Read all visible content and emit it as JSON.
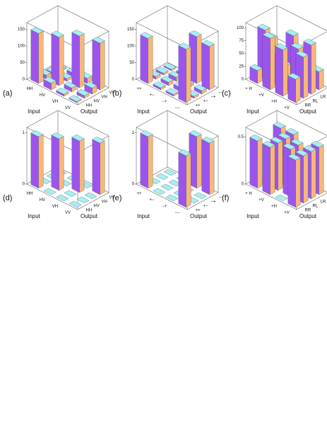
{
  "chart_data": [
    {
      "type": "bar3d",
      "label": "(a)",
      "x_label": "Input",
      "y_label": "Output",
      "categories": [
        "HH",
        "HV",
        "VH",
        "VV"
      ],
      "output_categories": [
        "HH",
        "HV",
        "VH",
        "VV"
      ],
      "values": [
        [
          150,
          12,
          5,
          2
        ],
        [
          20,
          145,
          8,
          10
        ],
        [
          6,
          12,
          155,
          15
        ],
        [
          3,
          8,
          18,
          140
        ]
      ],
      "zlim": [
        0,
        170
      ],
      "zticks": [
        0,
        50,
        100,
        150
      ],
      "color_top": "#a6eef5",
      "color_front": "#9b55ee",
      "color_side": "#f6b77a"
    },
    {
      "type": "bar3d",
      "label": "(b)",
      "x_label": "Input",
      "y_label": "Output",
      "categories": [
        "++",
        "+−",
        "−+",
        "−−"
      ],
      "output_categories": [
        "++",
        "+−",
        "−+",
        "−−"
      ],
      "values": [
        [
          135,
          8,
          5,
          4
        ],
        [
          6,
          10,
          12,
          8
        ],
        [
          5,
          12,
          8,
          140
        ],
        [
          160,
          6,
          10,
          130
        ]
      ],
      "zlim": [
        0,
        170
      ],
      "zticks": [
        0,
        50,
        100,
        150
      ],
      "color_top": "#a6eef5",
      "color_front": "#9b55ee",
      "color_side": "#f6b77a"
    },
    {
      "type": "bar3d",
      "label": "(c)",
      "x_label": "Input",
      "y_label": "Output",
      "categories": [
        "+ H",
        "+V",
        "+H",
        "+V"
      ],
      "output_categories": [
        "RR",
        "RL",
        "LR",
        "LL"
      ],
      "values": [
        [
          25,
          95,
          70,
          40
        ],
        [
          100,
          60,
          30,
          80
        ],
        [
          90,
          20,
          75,
          55
        ],
        [
          45,
          80,
          95,
          35
        ]
      ],
      "zlim": [
        0,
        110
      ],
      "zticks": [
        0,
        25,
        50,
        75,
        100
      ],
      "color_top": "#a6eef5",
      "color_front": "#9b55ee",
      "color_side": "#f6b77a"
    },
    {
      "type": "bar3d",
      "label": "(d)",
      "x_label": "Input",
      "y_label": "Output",
      "categories": [
        "HH",
        "HV",
        "VH",
        "VV"
      ],
      "output_categories": [
        "HH",
        "HV",
        "VH",
        "VV"
      ],
      "values": [
        [
          1,
          0,
          0,
          0
        ],
        [
          0,
          1,
          0,
          0
        ],
        [
          0,
          0,
          1,
          0
        ],
        [
          0,
          0,
          0,
          1
        ]
      ],
      "zlim": [
        0,
        1.1
      ],
      "zticks": [
        0,
        1
      ],
      "color_top": "#a6eef5",
      "color_front": "#9b55ee",
      "color_side": "#f6b77a"
    },
    {
      "type": "bar3d",
      "label": "(e)",
      "x_label": "Input",
      "y_label": "Output",
      "categories": [
        "++",
        "+−",
        "−+",
        "−−"
      ],
      "output_categories": [
        "++",
        "+−",
        "−+",
        "−−"
      ],
      "values": [
        [
          1,
          0,
          0,
          0
        ],
        [
          0,
          0,
          0,
          0
        ],
        [
          0,
          0,
          0,
          1
        ],
        [
          1,
          0,
          0,
          1
        ]
      ],
      "zlim": [
        0,
        1.1
      ],
      "zticks": [
        0,
        1
      ],
      "color_top": "#a6eef5",
      "color_front": "#9b55ee",
      "color_side": "#f6b77a"
    },
    {
      "type": "bar3d",
      "label": "(f)",
      "x_label": "Input",
      "y_label": "Output",
      "categories": [
        "+ H",
        "+V",
        "+H",
        "+V"
      ],
      "output_categories": [
        "RR",
        "RL",
        "LR",
        "LL"
      ],
      "values": [
        [
          0.5,
          0,
          0,
          0.5
        ],
        [
          0.5,
          0.5,
          0.5,
          0.5
        ],
        [
          0,
          0.5,
          0.5,
          0
        ],
        [
          0.5,
          0.5,
          0.5,
          0.5
        ]
      ],
      "zlim": [
        0,
        0.6
      ],
      "zticks": [
        0,
        0.5
      ],
      "color_top": "#a6eef5",
      "color_front": "#9b55ee",
      "color_side": "#f6b77a"
    }
  ]
}
